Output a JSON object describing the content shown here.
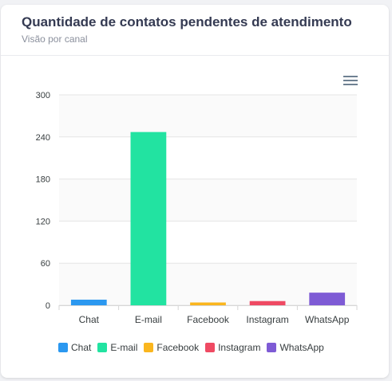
{
  "card": {
    "title": "Quantidade de contatos pendentes de atendimento",
    "subtitle": "Visão por canal",
    "menu_icon": "hamburger-menu-icon"
  },
  "chart_data": {
    "type": "bar",
    "title": "",
    "xlabel": "",
    "ylabel": "",
    "categories": [
      "Chat",
      "E-mail",
      "Facebook",
      "Instagram",
      "WhatsApp"
    ],
    "values": [
      8,
      247,
      4,
      6,
      18
    ],
    "colors": [
      "#2b98f0",
      "#22e3a1",
      "#fab61e",
      "#ef4a63",
      "#7e5bd5"
    ],
    "ylim": [
      0,
      300
    ],
    "yticks": [
      "0",
      "60",
      "120",
      "180",
      "240",
      "300"
    ],
    "grid": true,
    "legend_position": "bottom-left"
  }
}
